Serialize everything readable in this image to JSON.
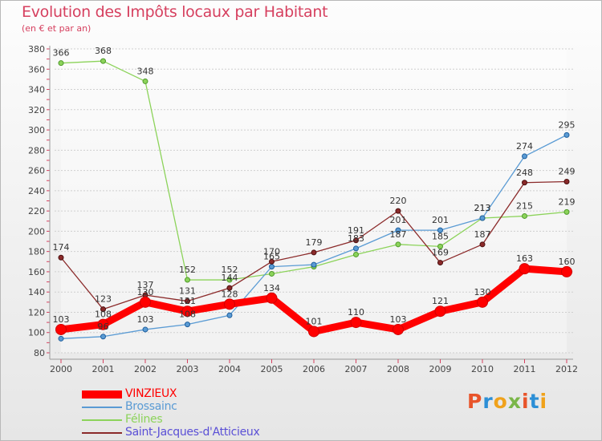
{
  "title": "Evolution des Impôts locaux par Habitant",
  "subtitle": "(en € et par an)",
  "brand": {
    "letters": [
      "P",
      "r",
      "o",
      "x",
      "i",
      "t",
      "i"
    ],
    "colors": [
      "#e8542a",
      "#2c8fd6",
      "#f0a21b",
      "#7ab648",
      "#e8542a",
      "#2c8fd6",
      "#f0a21b"
    ]
  },
  "chart_data": {
    "type": "line",
    "title": "Evolution des Impôts locaux par Habitant",
    "subtitle": "(en € et par an)",
    "x": [
      "2000",
      "2001",
      "2002",
      "2003",
      "2004",
      "2005",
      "2006",
      "2007",
      "2008",
      "2009",
      "2010",
      "2011",
      "2012"
    ],
    "ylim": [
      80,
      380
    ],
    "yticks": [
      80,
      100,
      120,
      140,
      160,
      180,
      200,
      220,
      240,
      260,
      280,
      300,
      320,
      340,
      360,
      380
    ],
    "grid": "horizontal",
    "legend_position": "bottom-left",
    "series": [
      {
        "name": "Félines",
        "color": "#8cd35a",
        "values": [
          366,
          368,
          348,
          152,
          152,
          158,
          165,
          177,
          187,
          185,
          213,
          215,
          219
        ],
        "labels": [
          "366",
          "368",
          "348",
          "152",
          "152",
          "",
          "",
          "",
          "187",
          "185",
          "213",
          "215",
          "219"
        ]
      },
      {
        "name": "Brossainc",
        "color": "#5a9bd4",
        "values": [
          94,
          96,
          103,
          108,
          117,
          165,
          167,
          183,
          201,
          201,
          213,
          274,
          295
        ],
        "labels": [
          "",
          "96",
          "103",
          "108",
          "",
          "165",
          "",
          "183",
          "201",
          "201",
          "213",
          "274",
          "295"
        ]
      },
      {
        "name": "Saint-Jacques-d'Atticieux",
        "color": "#8b2a2a",
        "values": [
          174,
          123,
          137,
          131,
          144,
          170,
          179,
          191,
          220,
          169,
          187,
          248,
          249
        ],
        "labels": [
          "174",
          "123",
          "137",
          "131",
          "144",
          "170",
          "179",
          "191",
          "220",
          "169",
          "187",
          "248",
          "249"
        ]
      },
      {
        "name": "VINZIEUX",
        "color": "#ff0000",
        "values": [
          103,
          108,
          130,
          121,
          128,
          134,
          101,
          110,
          103,
          121,
          130,
          163,
          160
        ],
        "labels": [
          "103",
          "108",
          "130",
          "121",
          "128",
          "134",
          "101",
          "110",
          "103",
          "121",
          "130",
          "163",
          "160"
        ]
      }
    ],
    "legend": [
      {
        "name": "VINZIEUX",
        "color": "#ff0000"
      },
      {
        "name": "Brossainc",
        "color": "#5a9bd4"
      },
      {
        "name": "Félines",
        "color": "#8cd35a"
      },
      {
        "name": "Saint-Jacques-d'Atticieux",
        "color": "#8b2a2a"
      }
    ]
  }
}
